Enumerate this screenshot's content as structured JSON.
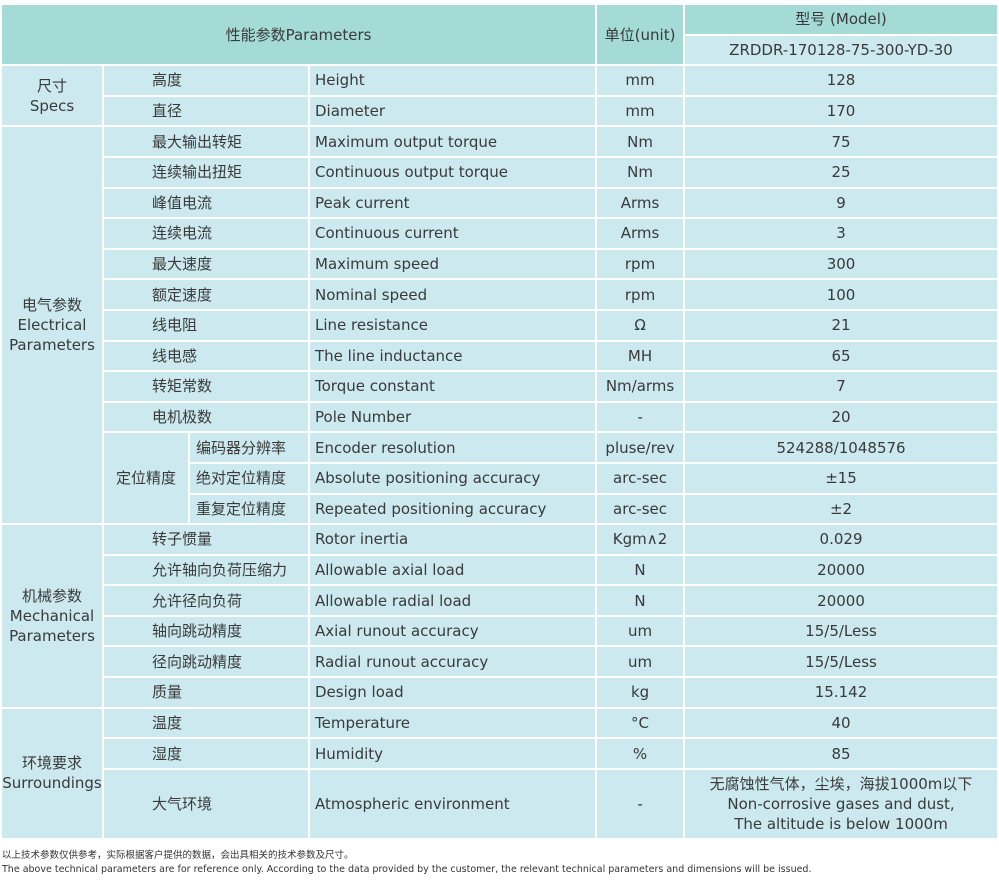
{
  "header": {
    "parameters": "性能参数Parameters",
    "unit": "单位(unit)",
    "model_label": "型号 (Model)",
    "model": "ZRDDR-170128-75-300-YD-30"
  },
  "groups": [
    {
      "label": [
        "尺寸",
        "Specs"
      ],
      "rows": [
        {
          "cn": "高度",
          "en": "Height",
          "unit": "mm",
          "value": 128
        },
        {
          "cn": "直径",
          "en": "Diameter",
          "unit": "mm",
          "value": 170
        }
      ]
    },
    {
      "label": [
        "电气参数",
        "Electrical",
        "Parameters"
      ],
      "rows": [
        {
          "cn": "最大输出转矩",
          "en": "Maximum output torque",
          "unit": "Nm",
          "value": 75
        },
        {
          "cn": "连续输出扭矩",
          "en": "Continuous output torque",
          "unit": "Nm",
          "value": 25
        },
        {
          "cn": "峰值电流",
          "en": "Peak current",
          "unit": "Arms",
          "value": 9
        },
        {
          "cn": "连续电流",
          "en": "Continuous current",
          "unit": "Arms",
          "value": 3
        },
        {
          "cn": "最大速度",
          "en": "Maximum speed",
          "unit": "rpm",
          "value": 300
        },
        {
          "cn": "额定速度",
          "en": "Nominal speed",
          "unit": "rpm",
          "value": 100
        },
        {
          "cn": "线电阻",
          "en": "Line resistance",
          "unit": "Ω",
          "value": 21
        },
        {
          "cn": "线电感",
          "en": "The line inductance",
          "unit": "MH",
          "value": 65
        },
        {
          "cn": "转矩常数",
          "en": "Torque constant",
          "unit": "Nm/arms",
          "value": 7
        },
        {
          "cn": "电机极数",
          "en": "Pole Number",
          "unit": "-",
          "value": 20
        },
        {
          "label": "定位精度",
          "rows": [
            {
              "cn": "编码器分辨率",
              "en": "Encoder resolution",
              "unit": "pluse/rev",
              "value": "524288/1048576"
            },
            {
              "cn": "绝对定位精度",
              "en": "Absolute positioning accuracy",
              "unit": "arc-sec",
              "value": "±15"
            },
            {
              "cn": "重复定位精度",
              "en": "Repeated positioning accuracy",
              "unit": "arc-sec",
              "value": "±2"
            }
          ]
        }
      ]
    },
    {
      "label": [
        "机械参数",
        "Mechanical",
        "Parameters"
      ],
      "rows": [
        {
          "cn": "转子惯量",
          "en": "Rotor inertia",
          "unit": "Kgm∧2",
          "value": 0.029
        },
        {
          "cn": "允许轴向负荷压缩力",
          "en": "Allowable axial load",
          "unit": "N",
          "value": 20000
        },
        {
          "cn": "允许径向负荷",
          "en": "Allowable radial load",
          "unit": "N",
          "value": 20000
        },
        {
          "cn": "轴向跳动精度",
          "en": "Axial runout accuracy",
          "unit": "um",
          "value": "15/5/Less"
        },
        {
          "cn": "径向跳动精度",
          "en": "Radial runout accuracy",
          "unit": "um",
          "value": "15/5/Less"
        },
        {
          "cn": "质量",
          "en": "Design load",
          "unit": "kg",
          "value": 15.142
        }
      ]
    },
    {
      "label": [
        "环境要求",
        "Surroundings"
      ],
      "rows": [
        {
          "cn": "温度",
          "en": "Temperature",
          "unit": "°C",
          "value": 40
        },
        {
          "cn": "湿度",
          "en": "Humidity",
          "unit": "%",
          "value": 85
        },
        {
          "cn": "大气环境",
          "en": "Atmospheric environment",
          "unit": "-",
          "value": [
            "无腐蚀性气体，尘埃，海拔1000m以下",
            "Non-corrosive gases and dust,",
            "The altitude is below 1000m"
          ]
        }
      ]
    }
  ],
  "footnotes": [
    "以上技术参数仅供参考，实际根据客户提供的数据，会出具相关的技术参数及尺寸。",
    "The above technical parameters are for reference only. According to the data provided by the customer, the relevant technical parameters and dimensions will be issued."
  ]
}
